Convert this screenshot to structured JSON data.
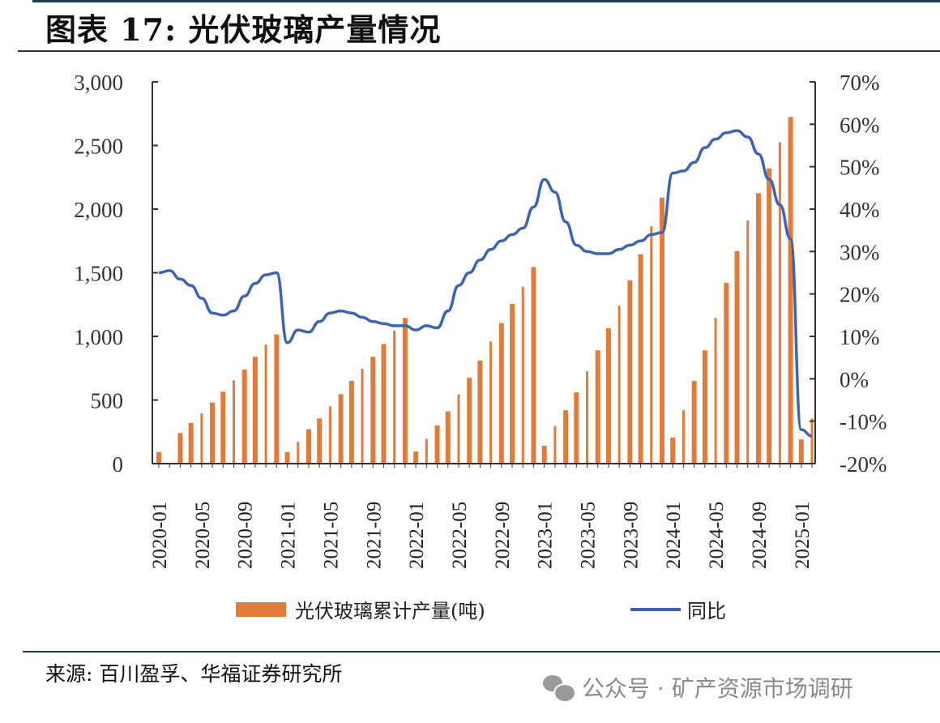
{
  "header": {
    "title": "图表 17:  光伏玻璃产量情况"
  },
  "footer": {
    "source": "来源:  百川盈孚、华福证券研究所",
    "watermark": "公众号 · 矿产资源市场调研",
    "watermark_icon": "wechat-icon"
  },
  "colors": {
    "bar": "#e07b39",
    "line": "#3c64b1",
    "axis": "#333333",
    "rule": "#1f3a4d"
  },
  "chart_data": {
    "type": "bar+line",
    "title": "光伏玻璃产量情况",
    "xlabel": "",
    "ylabel_left": "",
    "ylabel_right": "",
    "ylim_left": [
      0,
      3000
    ],
    "ylim_right": [
      -20,
      70
    ],
    "left_ticks": [
      "0",
      "500",
      "1,000",
      "1,500",
      "2,000",
      "2,500",
      "3,000"
    ],
    "left_tick_values": [
      0,
      500,
      1000,
      1500,
      2000,
      2500,
      3000
    ],
    "right_ticks": [
      "-20%",
      "-10%",
      "0%",
      "10%",
      "20%",
      "30%",
      "40%",
      "50%",
      "60%",
      "70%"
    ],
    "right_tick_values": [
      -20,
      -10,
      0,
      10,
      20,
      30,
      40,
      50,
      60,
      70
    ],
    "x_tick_labels": [
      "2020-01",
      "2020-05",
      "2020-09",
      "2021-01",
      "2021-05",
      "2021-09",
      "2022-01",
      "2022-05",
      "2022-09",
      "2023-01",
      "2023-05",
      "2023-09",
      "2024-01",
      "2024-05",
      "2024-09",
      "2025-01"
    ],
    "grid": false,
    "legend_position": "bottom",
    "categories": [
      "2020-01",
      "2020-02",
      "2020-03",
      "2020-04",
      "2020-05",
      "2020-06",
      "2020-07",
      "2020-08",
      "2020-09",
      "2020-10",
      "2020-11",
      "2020-12",
      "2021-01",
      "2021-02",
      "2021-03",
      "2021-04",
      "2021-05",
      "2021-06",
      "2021-07",
      "2021-08",
      "2021-09",
      "2021-10",
      "2021-11",
      "2021-12",
      "2022-01",
      "2022-02",
      "2022-03",
      "2022-04",
      "2022-05",
      "2022-06",
      "2022-07",
      "2022-08",
      "2022-09",
      "2022-10",
      "2022-11",
      "2022-12",
      "2023-01",
      "2023-02",
      "2023-03",
      "2023-04",
      "2023-05",
      "2023-06",
      "2023-07",
      "2023-08",
      "2023-09",
      "2023-10",
      "2023-11",
      "2023-12",
      "2024-01",
      "2024-02",
      "2024-03",
      "2024-04",
      "2024-05",
      "2024-06",
      "2024-07",
      "2024-08",
      "2024-09",
      "2024-10",
      "2024-11",
      "2024-12",
      "2025-01",
      "2025-02"
    ],
    "series": [
      {
        "name": "光伏玻璃累计产量(吨)",
        "type": "bar",
        "axis": "left",
        "values": [
          90,
          null,
          240,
          320,
          395,
          480,
          565,
          655,
          740,
          840,
          935,
          1015,
          90,
          170,
          270,
          355,
          450,
          545,
          650,
          745,
          840,
          940,
          1045,
          1145,
          95,
          195,
          300,
          410,
          545,
          675,
          810,
          960,
          1105,
          1255,
          1390,
          1545,
          140,
          295,
          420,
          560,
          725,
          890,
          1065,
          1240,
          1440,
          1645,
          1865,
          2090,
          205,
          420,
          650,
          890,
          1145,
          1420,
          1670,
          1910,
          2125,
          2320,
          2525,
          2725,
          190,
          355
        ]
      },
      {
        "name": "同比",
        "type": "line",
        "axis": "right",
        "unit": "%",
        "values": [
          25,
          25.5,
          23.5,
          22,
          19,
          15.5,
          15,
          16,
          19.5,
          22.5,
          24.5,
          25,
          8.5,
          11.5,
          11,
          13.5,
          15.5,
          16,
          15.5,
          14.5,
          13.5,
          13,
          12.5,
          12.5,
          11.5,
          12.5,
          12,
          16,
          22,
          25,
          28,
          30.5,
          32.5,
          34,
          35.5,
          40.5,
          47,
          44,
          37,
          31.5,
          30,
          29.5,
          29.5,
          30.5,
          31.5,
          32.5,
          34,
          34.5,
          48.5,
          49,
          51,
          54.5,
          56.5,
          58,
          58.5,
          57,
          53,
          47,
          41,
          33,
          -12,
          -13.5
        ]
      }
    ],
    "legend": [
      {
        "label": "光伏玻璃累计产量(吨)",
        "marker": "bar"
      },
      {
        "label": "同比",
        "marker": "line"
      }
    ]
  }
}
